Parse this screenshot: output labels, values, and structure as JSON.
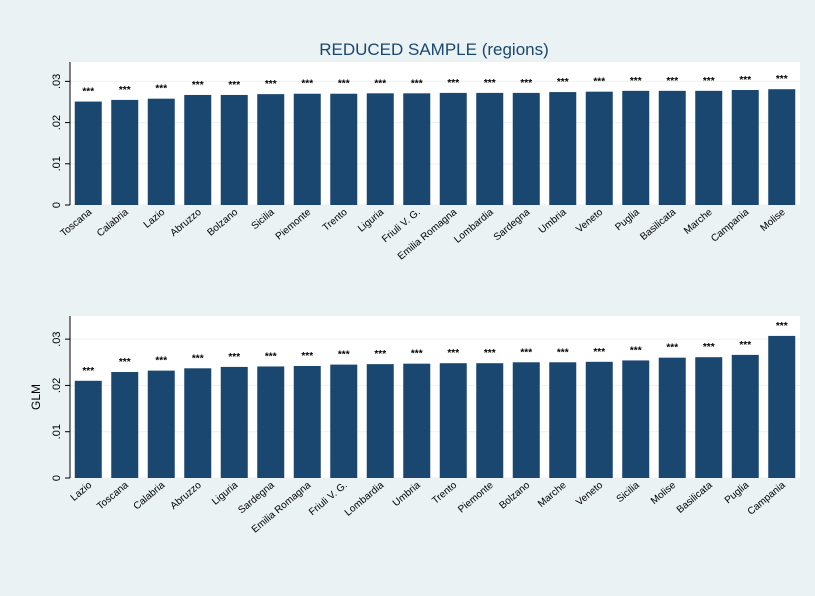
{
  "chart_data": [
    {
      "type": "bar",
      "title": "REDUCED SAMPLE (regions)",
      "categories": [
        "Toscana",
        "Calabria",
        "Lazio",
        "Abruzzo",
        "Bolzano",
        "Sicilia",
        "Piemonte",
        "Trento",
        "Liguria",
        "Friuli V. G.",
        "Emilia Romagna",
        "Lombardia",
        "Sardegna",
        "Umbria",
        "Veneto",
        "Puglia",
        "Basilicata",
        "Marche",
        "Campania",
        "Molise"
      ],
      "values": [
        0.0251,
        0.0255,
        0.0258,
        0.0267,
        0.0267,
        0.0269,
        0.027,
        0.027,
        0.0271,
        0.0271,
        0.0272,
        0.0272,
        0.0272,
        0.0274,
        0.0275,
        0.0277,
        0.0277,
        0.0277,
        0.0279,
        0.0281
      ],
      "significance": [
        "***",
        "***",
        "***",
        "***",
        "***",
        "***",
        "***",
        "***",
        "***",
        "***",
        "***",
        "***",
        "***",
        "***",
        "***",
        "***",
        "***",
        "***",
        "***",
        "***"
      ],
      "color": "#1a476f",
      "ylim": [
        0,
        0.0347
      ],
      "yticks": [
        0,
        {
          "value": 0.01,
          "label": ".01"
        },
        {
          "value": 0.02,
          "label": ".02"
        },
        {
          "value": 0.03,
          "label": ".03"
        }
      ],
      "grid": true
    },
    {
      "type": "bar",
      "ylabel": "GLM",
      "categories": [
        "Lazio",
        "Toscana",
        "Calabria",
        "Abruzzo",
        "Liguria",
        "Sardegna",
        "Emilia Romagna",
        "Friuli V. G.",
        "Lombardia",
        "Umbria",
        "Trento",
        "Piemonte",
        "Bolzano",
        "Marche",
        "Veneto",
        "Sicilia",
        "Molise",
        "Basilicata",
        "Puglia",
        "Campania"
      ],
      "values": [
        0.021,
        0.0229,
        0.0232,
        0.0237,
        0.024,
        0.0241,
        0.0242,
        0.0245,
        0.0246,
        0.0247,
        0.0248,
        0.0248,
        0.025,
        0.025,
        0.0251,
        0.0254,
        0.026,
        0.0261,
        0.0266,
        0.0307
      ],
      "significance": [
        "***",
        "***",
        "***",
        "***",
        "***",
        "***",
        "***",
        "***",
        "***",
        "***",
        "***",
        "***",
        "***",
        "***",
        "***",
        "***",
        "***",
        "***",
        "***",
        "***"
      ],
      "color": "#1a476f",
      "ylim": [
        0,
        0.035
      ],
      "yticks": [
        0,
        {
          "value": 0.01,
          "label": ".01"
        },
        {
          "value": 0.02,
          "label": ".02"
        },
        {
          "value": 0.03,
          "label": ".03"
        }
      ],
      "grid": true
    }
  ]
}
